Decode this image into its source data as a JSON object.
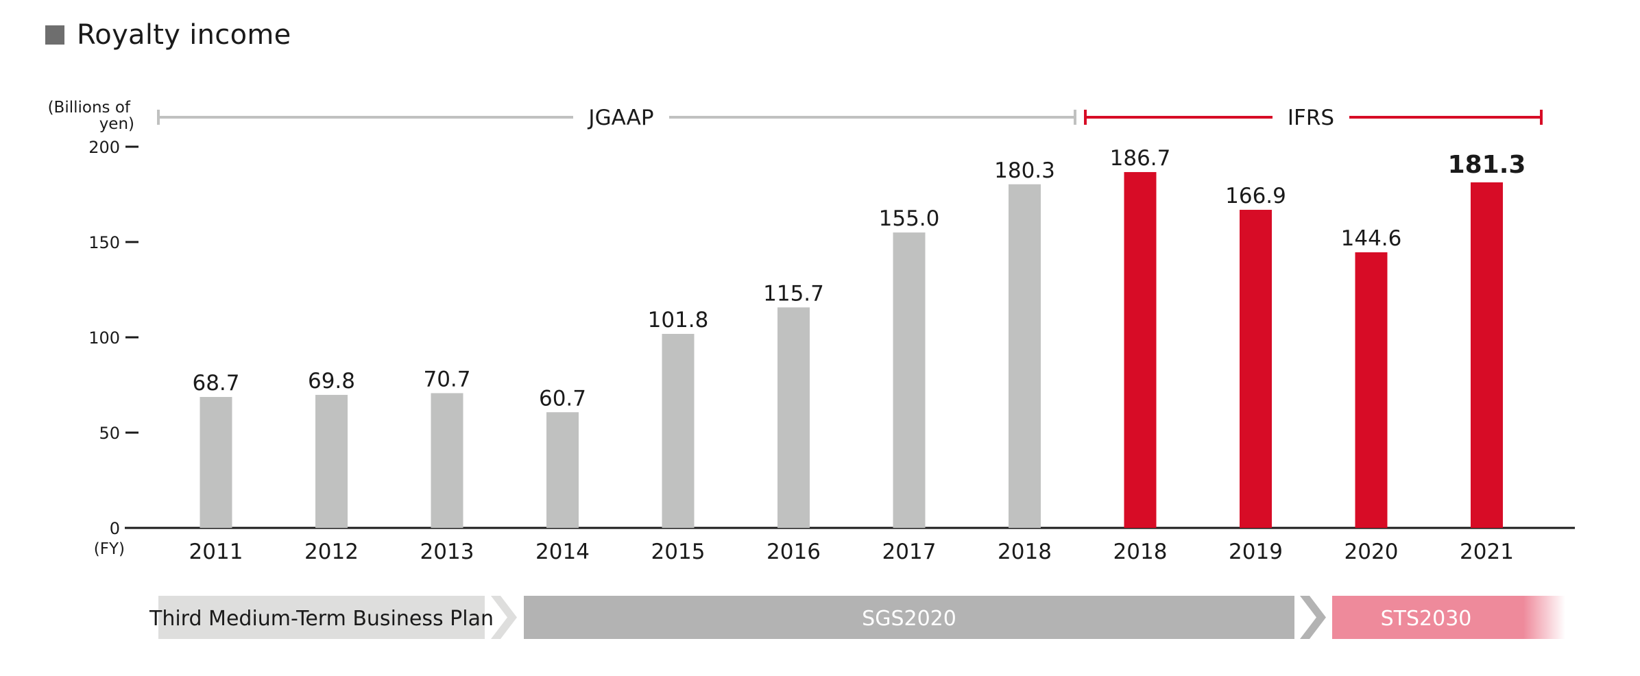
{
  "page": {
    "title": "Royalty income"
  },
  "colors": {
    "title_square": "#6e6e6e",
    "jgaap_bar": "#c0c1c0",
    "ifrs_bar": "#d70c26",
    "jgaap_bracket": "#c0c1c0",
    "ifrs_bracket": "#d70c26",
    "plan_third": "#dededd",
    "plan_sgs": "#b3b3b3",
    "plan_sts": "#ee8a9b",
    "axis": "#1a1a1a"
  },
  "chart_data": {
    "type": "bar",
    "title": "Royalty income",
    "ylabel": "(Billions of yen)",
    "xlabel": "(FY)",
    "ylim": [
      0,
      200
    ],
    "yticks": [
      0,
      50,
      100,
      150,
      200
    ],
    "grid": false,
    "categories": [
      "2011",
      "2012",
      "2013",
      "2014",
      "2015",
      "2016",
      "2017",
      "2018",
      "2018",
      "2019",
      "2020",
      "2021"
    ],
    "series": [
      {
        "name": "JGAAP",
        "values": [
          68.7,
          69.8,
          70.7,
          60.7,
          101.8,
          115.7,
          155.0,
          180.3,
          null,
          null,
          null,
          null
        ],
        "labels": [
          "68.7",
          "69.8",
          "70.7",
          "60.7",
          "101.8",
          "115.7",
          "155.0",
          "180.3",
          "",
          "",
          "",
          ""
        ]
      },
      {
        "name": "IFRS",
        "values": [
          null,
          null,
          null,
          null,
          null,
          null,
          null,
          null,
          186.7,
          166.9,
          144.6,
          181.3
        ],
        "labels": [
          "",
          "",
          "",
          "",
          "",
          "",
          "",
          "",
          "186.7",
          "166.9",
          "144.6",
          "181.3"
        ]
      }
    ],
    "highlight_index": 11,
    "standards": [
      {
        "name": "JGAAP",
        "from_index": 0,
        "to_index": 7
      },
      {
        "name": "IFRS",
        "from_index": 8,
        "to_index": 11
      }
    ],
    "plans": [
      {
        "name": "Third Medium-Term Business Plan",
        "from_index": 0,
        "to_index": 2
      },
      {
        "name": "SGS2020",
        "from_index": 3,
        "to_index": 9
      },
      {
        "name": "STS2030",
        "from_index": 10,
        "to_index": 11
      }
    ]
  }
}
